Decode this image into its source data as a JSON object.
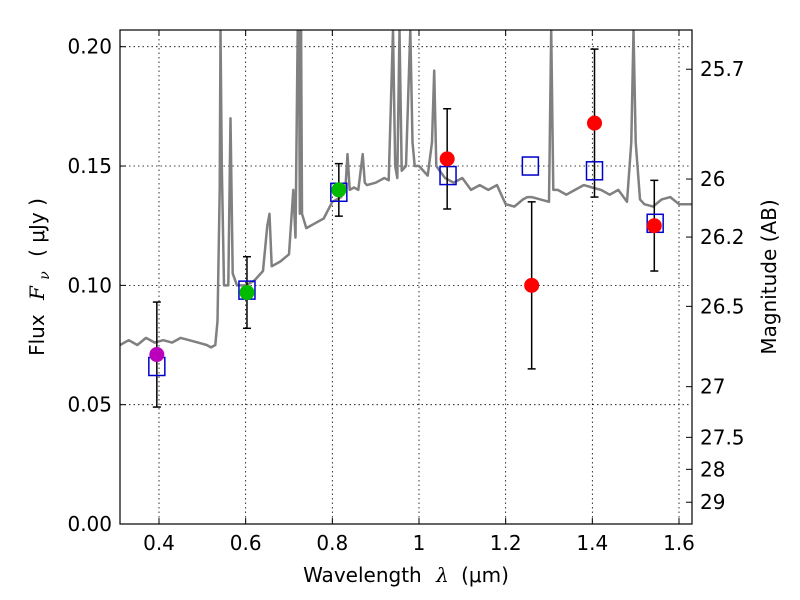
{
  "chart_data": {
    "type": "scatter",
    "xlabel_main": "Wavelength",
    "xlabel_lambda": "λ",
    "xlabel_unit": "(μm)",
    "ylabel_main": "Flux",
    "ylabel_symbol": "F",
    "ylabel_sub": "ν",
    "ylabel_unit": "( μJy )",
    "y2label": "Magnitude (AB)",
    "xlim": [
      0.31,
      1.63
    ],
    "ylim": [
      0.0,
      0.207
    ],
    "x_ticks": [
      {
        "value": 0.4,
        "label": "0.4"
      },
      {
        "value": 0.6,
        "label": "0.6"
      },
      {
        "value": 0.8,
        "label": "0.8"
      },
      {
        "value": 1.0,
        "label": "1"
      },
      {
        "value": 1.2,
        "label": "1.2"
      },
      {
        "value": 1.4,
        "label": "1.4"
      },
      {
        "value": 1.6,
        "label": "1.6"
      }
    ],
    "y_ticks": [
      {
        "value": 0.0,
        "label": "0.00"
      },
      {
        "value": 0.05,
        "label": "0.05"
      },
      {
        "value": 0.1,
        "label": "0.10"
      },
      {
        "value": 0.15,
        "label": "0.15"
      },
      {
        "value": 0.2,
        "label": "0.20"
      }
    ],
    "y2_ticks": [
      {
        "mag": 25.7,
        "label": "25.7"
      },
      {
        "mag": 26.0,
        "label": "26"
      },
      {
        "mag": 26.2,
        "label": "26.2"
      },
      {
        "mag": 26.5,
        "label": "26.5"
      },
      {
        "mag": 27.0,
        "label": "27"
      },
      {
        "mag": 27.5,
        "label": "27.5"
      },
      {
        "mag": 28.0,
        "label": "28"
      },
      {
        "mag": 29.0,
        "label": "29"
      }
    ],
    "grid": true,
    "colors": {
      "model": "#808080",
      "model_photometry": "#0000cc",
      "violet": "#bb00bb",
      "green": "#00bb00",
      "red": "#ff0000",
      "errorbar": "#000000"
    },
    "series": [
      {
        "name": "model spectrum",
        "kind": "line",
        "x": [
          0.31,
          0.33,
          0.35,
          0.37,
          0.39,
          0.41,
          0.43,
          0.45,
          0.47,
          0.49,
          0.51,
          0.52,
          0.53,
          0.535,
          0.54,
          0.542,
          0.545,
          0.55,
          0.56,
          0.565,
          0.57,
          0.58,
          0.6,
          0.62,
          0.64,
          0.65,
          0.655,
          0.66,
          0.68,
          0.7,
          0.71,
          0.715,
          0.72,
          0.723,
          0.725,
          0.728,
          0.73,
          0.74,
          0.76,
          0.78,
          0.8,
          0.82,
          0.83,
          0.835,
          0.84,
          0.85,
          0.86,
          0.87,
          0.875,
          0.88,
          0.9,
          0.92,
          0.93,
          0.94,
          0.945,
          0.95,
          0.955,
          0.96,
          0.97,
          0.98,
          0.985,
          0.99,
          1.0,
          1.02,
          1.03,
          1.035,
          1.04,
          1.06,
          1.08,
          1.1,
          1.12,
          1.14,
          1.16,
          1.18,
          1.19,
          1.2,
          1.22,
          1.24,
          1.25,
          1.26,
          1.28,
          1.3,
          1.305,
          1.31,
          1.32,
          1.34,
          1.36,
          1.38,
          1.4,
          1.42,
          1.44,
          1.46,
          1.48,
          1.49,
          1.495,
          1.5,
          1.51,
          1.52,
          1.54,
          1.56,
          1.58,
          1.6,
          1.63
        ],
        "y": [
          0.075,
          0.077,
          0.075,
          0.078,
          0.076,
          0.077,
          0.076,
          0.078,
          0.077,
          0.076,
          0.075,
          0.074,
          0.075,
          0.085,
          0.14,
          0.207,
          0.15,
          0.1,
          0.1,
          0.17,
          0.105,
          0.1,
          0.1,
          0.102,
          0.106,
          0.125,
          0.13,
          0.108,
          0.11,
          0.113,
          0.14,
          0.12,
          0.207,
          0.207,
          0.13,
          0.207,
          0.13,
          0.124,
          0.126,
          0.128,
          0.135,
          0.137,
          0.14,
          0.155,
          0.14,
          0.141,
          0.14,
          0.155,
          0.143,
          0.142,
          0.143,
          0.145,
          0.144,
          0.207,
          0.15,
          0.145,
          0.207,
          0.148,
          0.15,
          0.207,
          0.16,
          0.15,
          0.15,
          0.146,
          0.16,
          0.19,
          0.15,
          0.145,
          0.143,
          0.145,
          0.14,
          0.142,
          0.14,
          0.142,
          0.138,
          0.134,
          0.133,
          0.136,
          0.137,
          0.137,
          0.136,
          0.135,
          0.207,
          0.14,
          0.14,
          0.138,
          0.14,
          0.142,
          0.141,
          0.14,
          0.138,
          0.14,
          0.135,
          0.16,
          0.207,
          0.16,
          0.136,
          0.134,
          0.133,
          0.136,
          0.137,
          0.134,
          0.134
        ]
      },
      {
        "name": "model photometry",
        "kind": "open-square",
        "x": [
          0.395,
          0.603,
          0.815,
          1.067,
          1.257,
          1.405,
          1.545
        ],
        "y": [
          0.066,
          0.098,
          0.139,
          0.146,
          0.15,
          0.148,
          0.126
        ]
      },
      {
        "name": "observed photometry",
        "kind": "filled-circle-errorbar",
        "x": [
          0.395,
          0.603,
          0.815,
          1.065,
          1.26,
          1.405,
          1.543
        ],
        "y": [
          0.071,
          0.097,
          0.14,
          0.153,
          0.1,
          0.168,
          0.125
        ],
        "yerr": [
          0.022,
          0.015,
          0.011,
          0.021,
          0.035,
          0.031,
          0.019
        ],
        "colors": [
          "violet",
          "green",
          "green",
          "red",
          "red",
          "red",
          "red"
        ]
      }
    ]
  }
}
